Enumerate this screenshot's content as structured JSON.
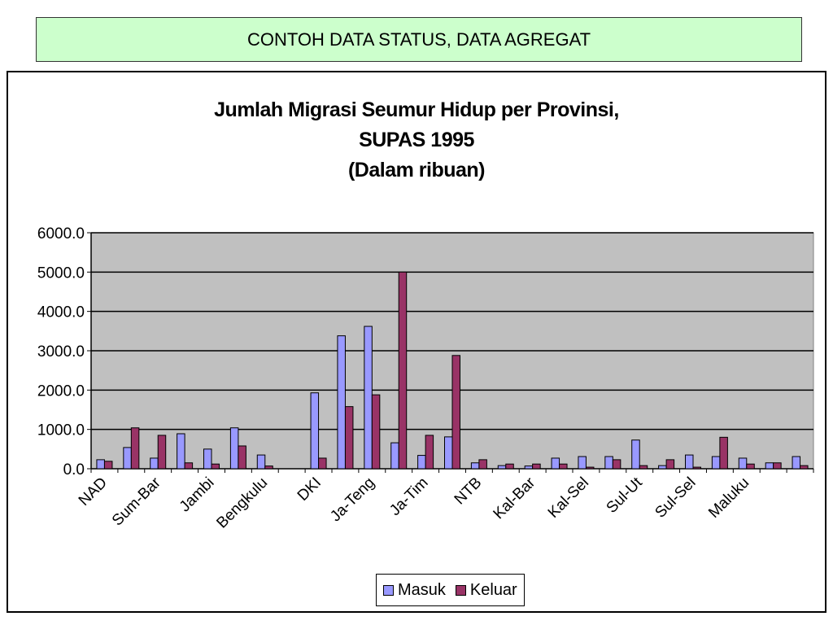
{
  "header": {
    "title": "CONTOH DATA STATUS, DATA AGREGAT"
  },
  "colors": {
    "header_bg": "#ccffcc",
    "plot_bg": "#c0c0c0",
    "masuk": "#9999ff",
    "keluar": "#993366"
  },
  "chart_data": {
    "type": "bar",
    "title_lines": [
      "Jumlah Migrasi Seumur Hidup per Provinsi,",
      "SUPAS 1995",
      "(Dalam ribuan)"
    ],
    "xlabel": "",
    "ylabel": "",
    "ylim": [
      0,
      6000
    ],
    "yticks": [
      "0.0",
      "1000.0",
      "2000.0",
      "3000.0",
      "4000.0",
      "5000.0",
      "6000.0"
    ],
    "grid": true,
    "legend_position": "bottom",
    "categories": [
      "NAD",
      "",
      "Sum-Bar",
      "",
      "Jambi",
      "",
      "Bengkulu",
      "",
      "DKI",
      "",
      "Ja-Teng",
      "",
      "Ja-Tim",
      "",
      "NTB",
      "",
      "Kal-Bar",
      "",
      "Kal-Sel",
      "",
      "Sul-Ut",
      "",
      "Sul-Sel",
      "",
      "Maluku",
      "",
      ""
    ],
    "series": [
      {
        "name": "Masuk",
        "values": [
          230,
          540,
          270,
          890,
          500,
          1040,
          350,
          0,
          1930,
          3380,
          3620,
          660,
          340,
          810,
          150,
          80,
          70,
          270,
          310,
          310,
          730,
          80,
          350,
          310,
          270,
          150,
          310
        ]
      },
      {
        "name": "Keluar",
        "values": [
          190,
          1040,
          850,
          150,
          120,
          580,
          70,
          0,
          270,
          1580,
          1880,
          5000,
          850,
          2880,
          230,
          120,
          120,
          120,
          40,
          230,
          80,
          230,
          40,
          800,
          120,
          150,
          80
        ]
      }
    ]
  }
}
